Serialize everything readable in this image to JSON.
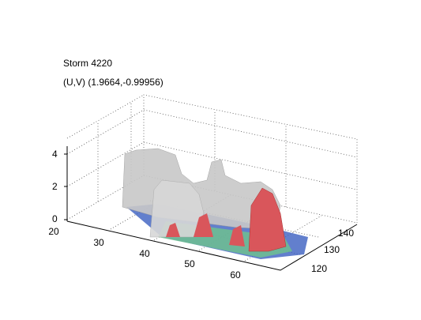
{
  "title": "Storm 4220",
  "subtitle": "(U,V) (1.9664,-0.99956)",
  "axes": {
    "x": {
      "ticks": [
        20,
        30,
        40,
        50,
        60
      ]
    },
    "y": {
      "ticks": [
        120,
        130,
        140
      ]
    },
    "z": {
      "ticks": [
        0,
        2,
        4
      ]
    }
  }
}
